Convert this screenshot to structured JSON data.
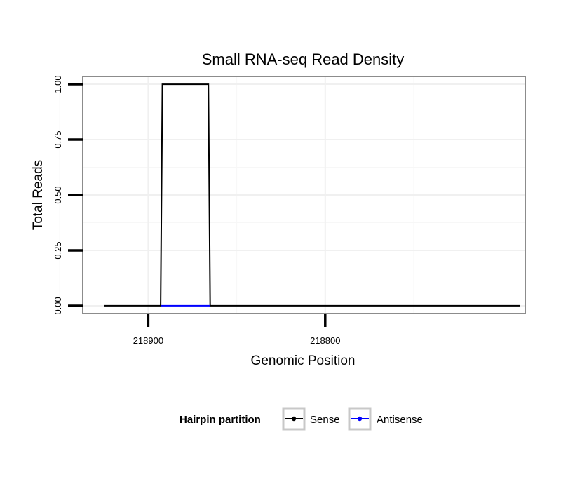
{
  "chart_data": {
    "type": "line",
    "title": "Small RNA-seq Read Density",
    "xlabel": "Genomic Position",
    "ylabel": "Total Reads",
    "x_reversed": true,
    "xlim": [
      218937,
      218687
    ],
    "ylim": [
      -0.035,
      1.035
    ],
    "xticks": [
      218900,
      218800
    ],
    "xtick_labels": [
      "218900",
      "218800"
    ],
    "yticks": [
      0,
      0.25,
      0.5,
      0.75,
      1.0
    ],
    "ytick_labels": [
      "0.00",
      "0.25",
      "0.50",
      "0.75",
      "1.00"
    ],
    "grid": true,
    "series": [
      {
        "name": "Sense",
        "color": "#000000",
        "x": [
          218925,
          218893,
          218892,
          218866,
          218865,
          218690
        ],
        "y": [
          0,
          0,
          1,
          1,
          0,
          0
        ]
      },
      {
        "name": "Antisense",
        "color": "#0000ff",
        "x": [
          218893,
          218865
        ],
        "y": [
          0,
          0
        ]
      }
    ],
    "legend": {
      "title": "Hairpin partition",
      "position": "bottom",
      "entries": [
        "Sense",
        "Antisense"
      ]
    }
  }
}
